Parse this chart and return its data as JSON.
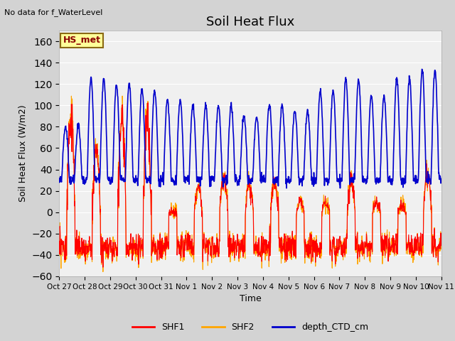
{
  "title": "Soil Heat Flux",
  "subtitle": "No data for f_WaterLevel",
  "ylabel": "Soil Heat Flux (W/m2)",
  "xlabel": "Time",
  "ylim": [
    -60,
    170
  ],
  "yticks": [
    -60,
    -40,
    -20,
    0,
    20,
    40,
    60,
    80,
    100,
    120,
    140,
    160
  ],
  "xtick_labels": [
    "Oct 27",
    "Oct 28",
    "Oct 29",
    "Oct 30",
    "Oct 31",
    "Nov 1",
    "Nov 2",
    "Nov 3",
    "Nov 4",
    "Nov 5",
    "Nov 6",
    "Nov 7",
    "Nov 8",
    "Nov 9",
    "Nov 10",
    "Nov 11"
  ],
  "legend_label1": "SHF1",
  "legend_label2": "SHF2",
  "legend_label3": "depth_CTD_cm",
  "color_shf1": "#ff0000",
  "color_shf2": "#ffa500",
  "color_ctd": "#0000cc",
  "fig_bg": "#d3d3d3",
  "plot_bg": "#f0f0f0",
  "annotation_box": "HS_met",
  "annotation_color": "#8b0000",
  "annotation_bg": "#ffff99",
  "annotation_border": "#8b6914"
}
